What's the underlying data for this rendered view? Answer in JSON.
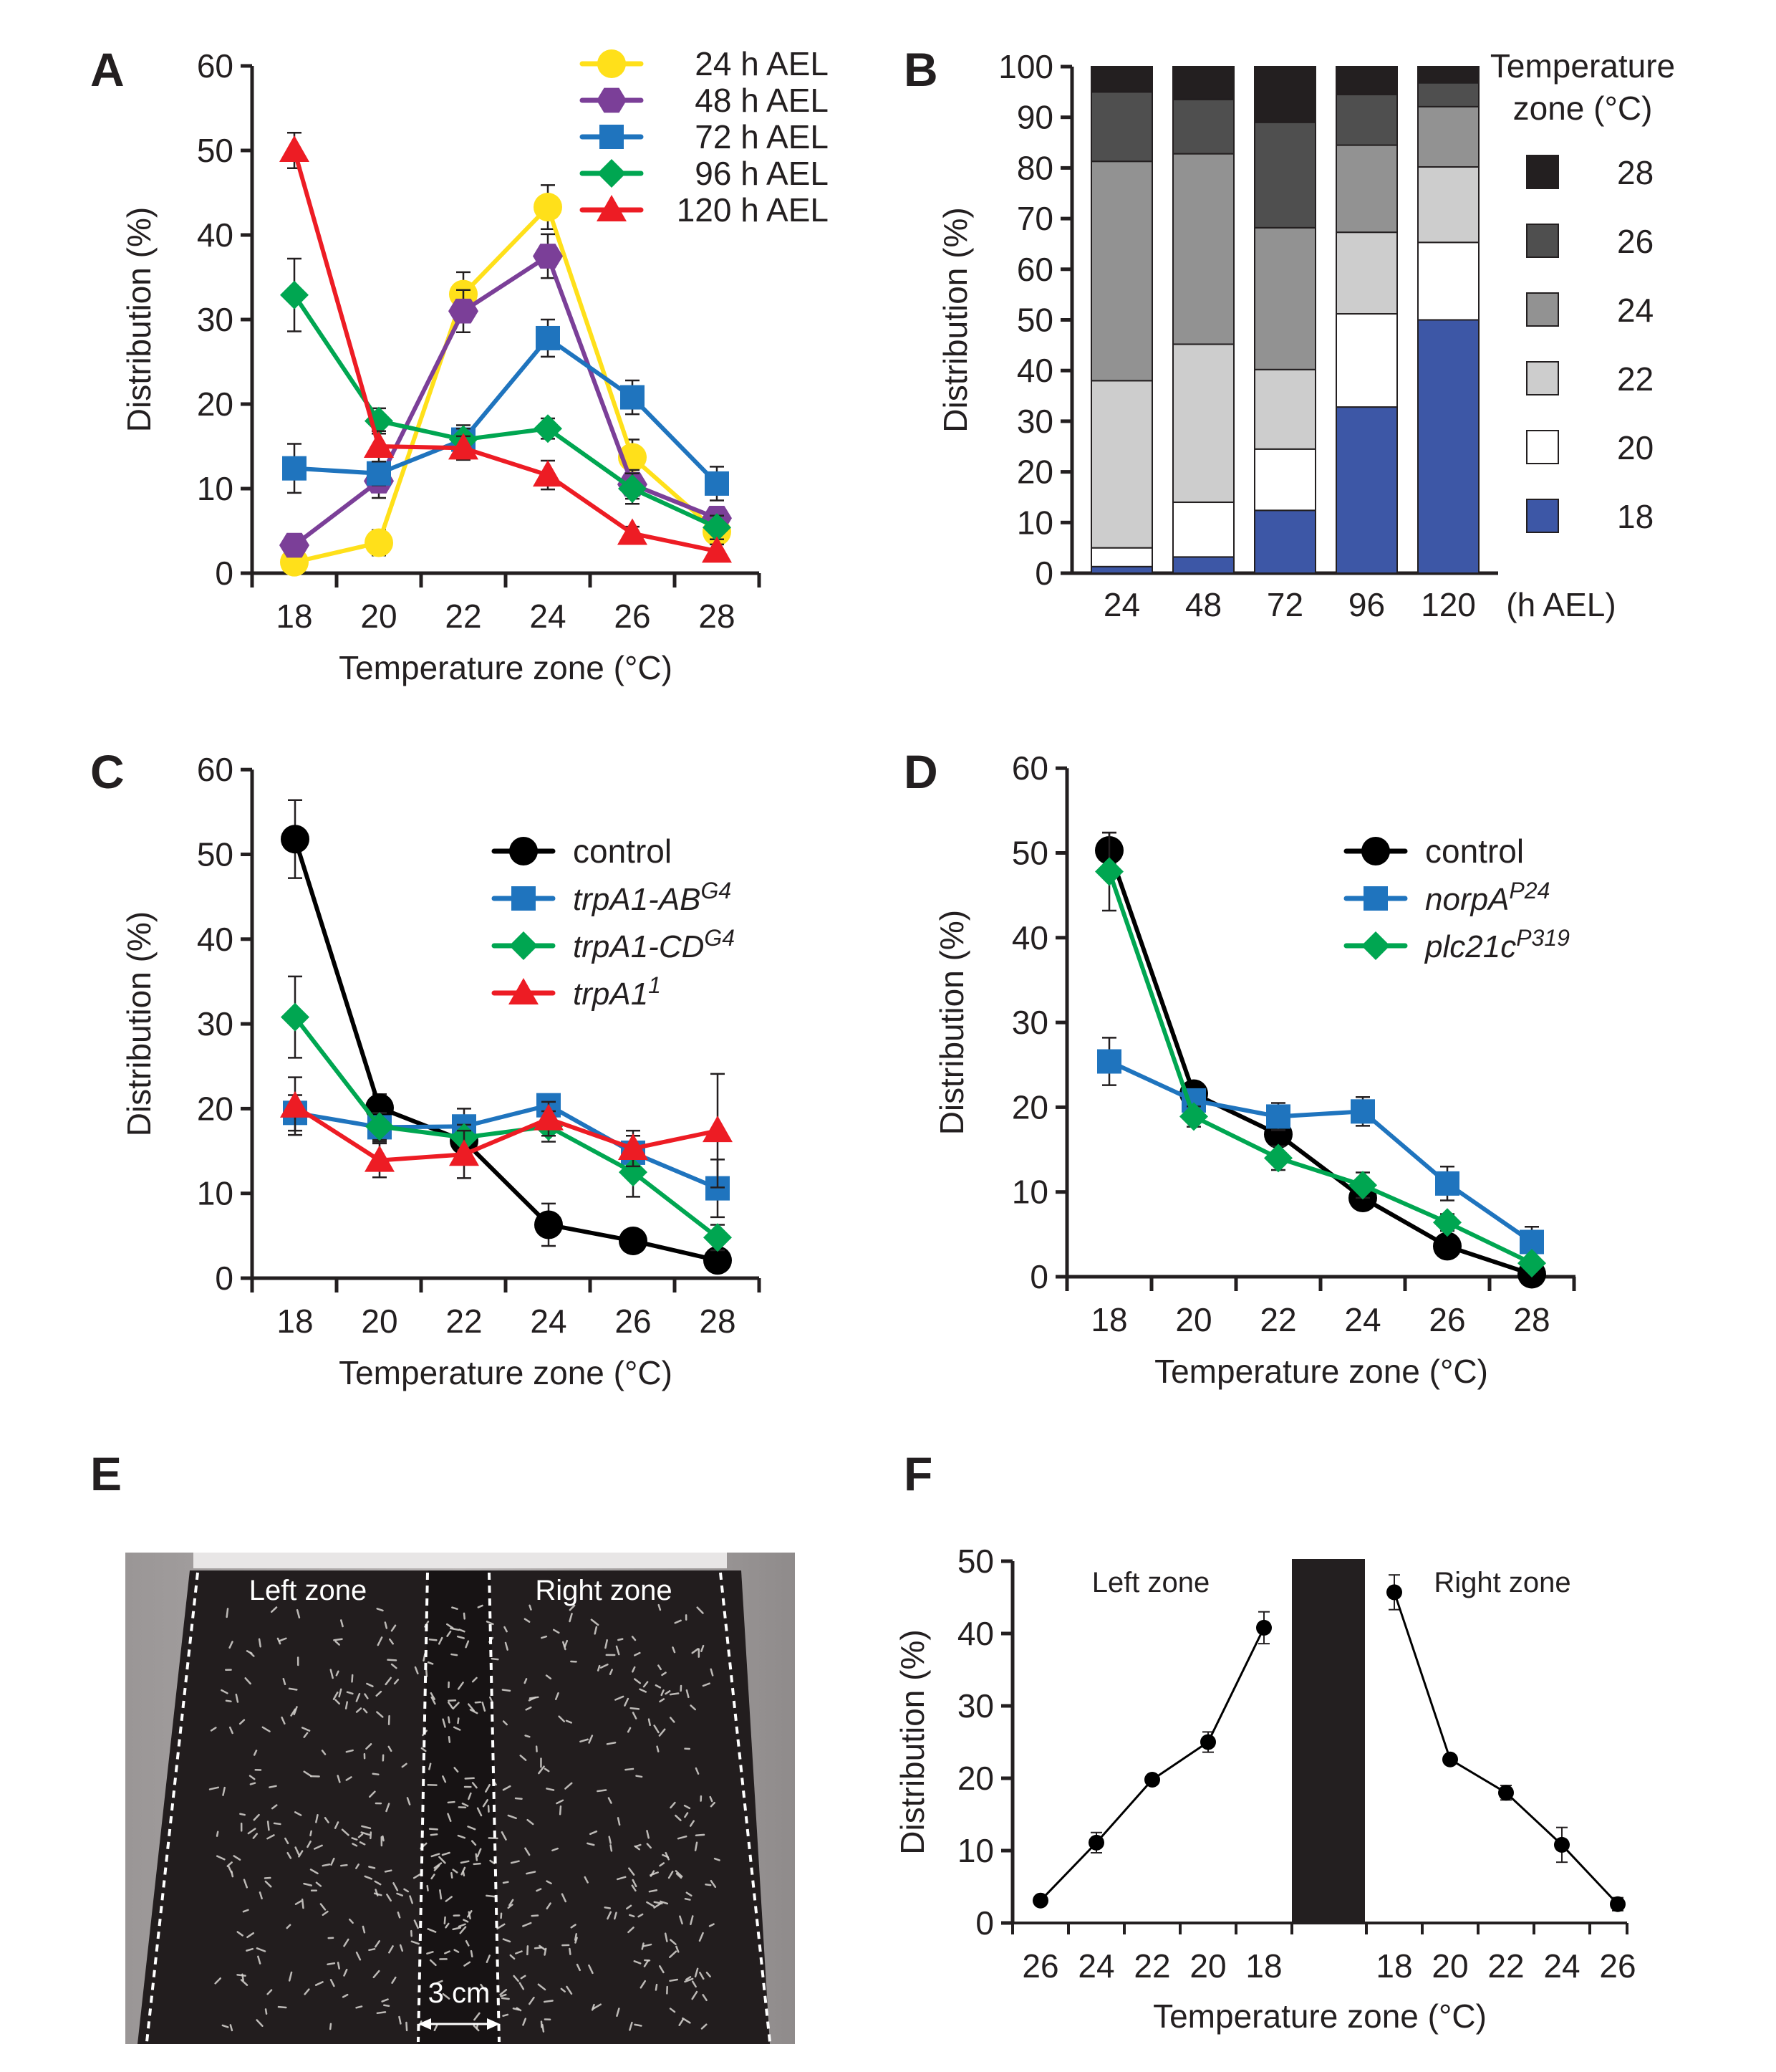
{
  "figure": {
    "panels": [
      "A",
      "B",
      "C",
      "D",
      "E",
      "F"
    ]
  },
  "colors": {
    "yellow": "#FFE01A",
    "purple": "#7B3F98",
    "blue": "#1F74BE",
    "green": "#00A651",
    "red": "#ED1C24",
    "black": "#000000",
    "axis": "#231f20",
    "bar_18": "#3D57A6",
    "bar_20": "#FFFFFF",
    "bar_22": "#CDCDCD",
    "bar_24": "#929292",
    "bar_26": "#4F4F4F",
    "bar_28": "#231F20"
  },
  "chart_data": [
    {
      "panel": "A",
      "type": "line",
      "title": "",
      "xlabel": "Temperature zone (°C)",
      "ylabel": "Distribution (%)",
      "categories": [
        "18",
        "20",
        "22",
        "24",
        "26",
        "28"
      ],
      "ylim": [
        0,
        60
      ],
      "yticks": [
        0,
        10,
        20,
        30,
        40,
        50,
        60
      ],
      "legend_position": "top-right",
      "series": [
        {
          "name": "24 h AEL",
          "marker": "circle",
          "color": "#FFE01A",
          "values": [
            1.3,
            3.6,
            33.0,
            43.3,
            13.7,
            4.9
          ],
          "errors": [
            0.6,
            1.5,
            2.6,
            2.6,
            2.1,
            1.2
          ]
        },
        {
          "name": "48 h AEL",
          "marker": "hexagon",
          "color": "#7B3F98",
          "values": [
            3.3,
            10.9,
            31.0,
            37.5,
            10.5,
            6.5
          ],
          "errors": [
            1.3,
            2.0,
            2.5,
            2.6,
            1.7,
            1.3
          ]
        },
        {
          "name": "72 h AEL",
          "marker": "square",
          "color": "#1F74BE",
          "values": [
            12.4,
            11.8,
            15.8,
            27.8,
            20.8,
            10.6
          ],
          "errors": [
            2.9,
            1.4,
            1.7,
            2.2,
            2.0,
            2.0
          ]
        },
        {
          "name": "96 h AEL",
          "marker": "diamond",
          "color": "#00A651",
          "values": [
            32.9,
            18.0,
            15.8,
            17.1,
            10.0,
            5.4
          ],
          "errors": [
            4.3,
            1.5,
            1.3,
            1.2,
            1.8,
            1.4
          ]
        },
        {
          "name": "120 h AEL",
          "marker": "triangle",
          "color": "#ED1C24",
          "values": [
            50.0,
            15.0,
            14.8,
            11.6,
            4.7,
            2.6
          ],
          "errors": [
            2.1,
            1.8,
            1.4,
            1.7,
            0.8,
            0.8
          ]
        }
      ]
    },
    {
      "panel": "B",
      "type": "bar",
      "stacked": true,
      "title": "",
      "xlabel": "(h AEL)",
      "ylabel": "Distribution (%)",
      "categories": [
        "24",
        "48",
        "72",
        "96",
        "120"
      ],
      "ylim": [
        0,
        100
      ],
      "yticks": [
        0,
        10,
        20,
        30,
        40,
        50,
        60,
        70,
        80,
        90,
        100
      ],
      "legend_title": [
        "Temperature",
        "zone (°C)"
      ],
      "legend_position": "right",
      "series": [
        {
          "name": "18",
          "color": "#3D57A6",
          "values": [
            1.3,
            3.2,
            12.4,
            32.8,
            50.0
          ]
        },
        {
          "name": "20",
          "color": "#FFFFFF",
          "values": [
            3.7,
            10.8,
            12.1,
            18.4,
            15.3
          ]
        },
        {
          "name": "22",
          "color": "#CDCDCD",
          "values": [
            33.0,
            31.2,
            15.7,
            16.1,
            14.9
          ]
        },
        {
          "name": "24",
          "color": "#929292",
          "values": [
            43.3,
            37.6,
            28.0,
            17.2,
            11.9
          ]
        },
        {
          "name": "26",
          "color": "#4F4F4F",
          "values": [
            13.7,
            10.7,
            20.8,
            10.0,
            4.7
          ]
        },
        {
          "name": "28",
          "color": "#231F20",
          "values": [
            5.0,
            6.5,
            11.0,
            5.5,
            3.2
          ]
        }
      ]
    },
    {
      "panel": "C",
      "type": "line",
      "title": "",
      "xlabel": "Temperature zone (°C)",
      "ylabel": "Distribution (%)",
      "categories": [
        "18",
        "20",
        "22",
        "24",
        "26",
        "28"
      ],
      "ylim": [
        0,
        60
      ],
      "yticks": [
        0,
        10,
        20,
        30,
        40,
        50,
        60
      ],
      "legend_position": "top-right",
      "series": [
        {
          "name": "control",
          "sup": "",
          "italic": false,
          "marker": "circle",
          "color": "#000000",
          "values": [
            51.8,
            20.1,
            16.2,
            6.3,
            4.4,
            2.1
          ],
          "errors": [
            4.6,
            1.6,
            1.5,
            2.5,
            0.5,
            0.5
          ]
        },
        {
          "name": "trpA1-AB",
          "sup": "G4",
          "italic": true,
          "marker": "square",
          "color": "#1F74BE",
          "values": [
            19.5,
            17.8,
            17.9,
            20.4,
            14.8,
            10.6
          ],
          "errors": [
            2.1,
            1.7,
            2.1,
            1.2,
            2.0,
            3.4
          ]
        },
        {
          "name": "trpA1-CD",
          "sup": "G4",
          "italic": true,
          "marker": "diamond",
          "color": "#00A651",
          "values": [
            30.8,
            17.9,
            16.6,
            17.9,
            12.5,
            4.8
          ],
          "errors": [
            4.8,
            1.6,
            1.5,
            1.8,
            2.9,
            1.5
          ]
        },
        {
          "name": "trpA1",
          "sup": "1",
          "italic": true,
          "marker": "triangle",
          "color": "#ED1C24",
          "values": [
            20.3,
            13.9,
            14.6,
            18.8,
            15.3,
            17.4
          ],
          "errors": [
            3.4,
            2.0,
            2.8,
            2.0,
            2.1,
            6.7
          ]
        }
      ]
    },
    {
      "panel": "D",
      "type": "line",
      "title": "",
      "xlabel": "Temperature zone (°C)",
      "ylabel": "Distribution (%)",
      "categories": [
        "18",
        "20",
        "22",
        "24",
        "26",
        "28"
      ],
      "ylim": [
        0,
        60
      ],
      "yticks": [
        0,
        10,
        20,
        30,
        40,
        50,
        60
      ],
      "legend_position": "top-right",
      "series": [
        {
          "name": "control",
          "sup": "",
          "italic": false,
          "marker": "circle",
          "color": "#000000",
          "values": [
            50.3,
            21.6,
            16.8,
            9.3,
            3.6,
            0.3
          ],
          "errors": [
            2.1,
            1.0,
            1.0,
            1.0,
            0.8,
            0.3
          ]
        },
        {
          "name": "norpA",
          "sup": "P24",
          "italic": true,
          "marker": "square",
          "color": "#1F74BE",
          "values": [
            25.4,
            20.8,
            18.9,
            19.5,
            11.0,
            4.1
          ],
          "errors": [
            2.8,
            0.9,
            1.6,
            1.7,
            2.0,
            1.8
          ]
        },
        {
          "name": "plc21c",
          "sup": "P319",
          "italic": true,
          "marker": "diamond",
          "color": "#00A651",
          "values": [
            47.8,
            18.9,
            14.0,
            10.8,
            6.4,
            1.6
          ],
          "errors": [
            4.6,
            1.2,
            1.4,
            1.5,
            1.0,
            0.5
          ]
        }
      ]
    },
    {
      "panel": "F",
      "type": "line",
      "title": "",
      "xlabel": "Temperature zone (°C)",
      "ylabel": "Distribution (%)",
      "ylim": [
        0,
        50
      ],
      "yticks": [
        0,
        10,
        20,
        30,
        40,
        50
      ],
      "annotations": [
        "Left zone",
        "Right zone"
      ],
      "series": [
        {
          "name": "Left zone",
          "categories": [
            "26",
            "24",
            "22",
            "20",
            "18"
          ],
          "color": "#000000",
          "marker": "circle",
          "values": [
            3.1,
            11.1,
            19.8,
            25.0,
            40.8
          ],
          "errors": [
            0.4,
            1.4,
            0.4,
            1.4,
            2.2
          ]
        },
        {
          "name": "Right zone",
          "categories": [
            "18",
            "20",
            "22",
            "24",
            "26"
          ],
          "color": "#000000",
          "marker": "circle",
          "values": [
            45.7,
            22.6,
            18.0,
            10.8,
            2.6
          ],
          "errors": [
            2.4,
            0.4,
            1.0,
            2.4,
            0.9
          ]
        }
      ],
      "center_block": "neutral zone (3 cm)"
    }
  ],
  "photo": {
    "panel": "E",
    "left_label": "Left zone",
    "right_label": "Right zone",
    "scale_label": "3 cm"
  }
}
